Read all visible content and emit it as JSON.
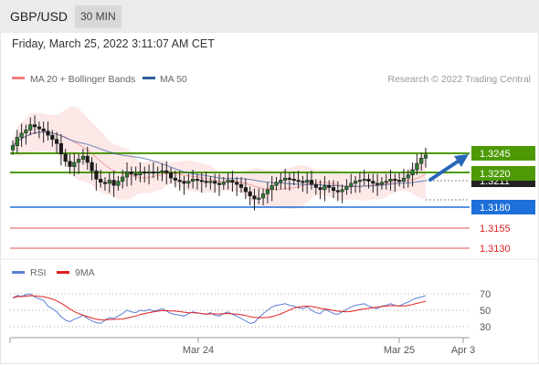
{
  "header": {
    "symbol": "GBP/USD",
    "timeframe": "30 MIN"
  },
  "datetime": "Friday, March 25, 2022 3:11:07 AM CET",
  "legend": {
    "bb_label": "MA 20 + Bollinger Bands",
    "ma50_label": "MA 50",
    "credit": "Research © 2022 Trading Central"
  },
  "colors": {
    "bb": "#f08080",
    "ma50": "#2e5a9c",
    "resistance": "#4e9a06",
    "pivot": "#1e6fd9",
    "support": "#e05050",
    "rsi": "#5b7fd6",
    "rsi_ma": "#e02020"
  },
  "levels": {
    "r2": "1.3245",
    "r1": "1.3220",
    "current": "1.3211",
    "pivot": "1.3180",
    "s1": "1.3155",
    "s2": "1.3130"
  },
  "indicator": {
    "rsi_label": "RSI",
    "ma_label": "9MA",
    "ticks": [
      "70",
      "50",
      "30"
    ]
  },
  "xaxis": {
    "labels": [
      "Mar 24",
      "Mar 25",
      "Apr 3"
    ]
  },
  "chart_data": {
    "type": "candlestick",
    "y_range": [
      1.3122,
      1.3272
    ],
    "closes": [
      1.322,
      1.3228,
      1.3232,
      1.3235,
      1.324,
      1.3238,
      1.3236,
      1.3234,
      1.323,
      1.3226,
      1.3222,
      1.3212,
      1.3205,
      1.32,
      1.3204,
      1.3207,
      1.321,
      1.3204,
      1.3196,
      1.3188,
      1.3185,
      1.3184,
      1.3187,
      1.3182,
      1.3186,
      1.319,
      1.3195,
      1.3193,
      1.3192,
      1.3195,
      1.3194,
      1.3195,
      1.3194,
      1.3195,
      1.3196,
      1.3194,
      1.3189,
      1.3187,
      1.3186,
      1.3184,
      1.3186,
      1.3188,
      1.3187,
      1.3186,
      1.3185,
      1.3186,
      1.3184,
      1.3183,
      1.3185,
      1.3187,
      1.3185,
      1.3183,
      1.318,
      1.3176,
      1.3172,
      1.3169,
      1.317,
      1.3174,
      1.3178,
      1.3182,
      1.3185,
      1.3187,
      1.3189,
      1.3188,
      1.3187,
      1.3186,
      1.3185,
      1.3187,
      1.3183,
      1.318,
      1.3178,
      1.3182,
      1.318,
      1.3177,
      1.3176,
      1.3178,
      1.3181,
      1.3184,
      1.3186,
      1.3187,
      1.3188,
      1.3186,
      1.3184,
      1.3183,
      1.3185,
      1.3186,
      1.3188,
      1.3187,
      1.3186,
      1.3189,
      1.3192,
      1.3197,
      1.3203,
      1.3208,
      1.3211
    ],
    "rsi": [
      65,
      68,
      67,
      69,
      70,
      66,
      64,
      62,
      55,
      52,
      48,
      42,
      38,
      36,
      39,
      41,
      44,
      40,
      37,
      35,
      34,
      38,
      41,
      40,
      43,
      46,
      50,
      48,
      47,
      50,
      49,
      51,
      49,
      50,
      52,
      49,
      46,
      45,
      44,
      43,
      46,
      48,
      47,
      46,
      45,
      47,
      44,
      43,
      46,
      48,
      45,
      43,
      40,
      37,
      34,
      35,
      41,
      46,
      50,
      54,
      56,
      57,
      58,
      56,
      55,
      53,
      52,
      54,
      50,
      47,
      46,
      51,
      49,
      46,
      45,
      48,
      51,
      54,
      56,
      57,
      58,
      55,
      53,
      52,
      55,
      56,
      58,
      56,
      55,
      58,
      60,
      63,
      65,
      66,
      68
    ]
  }
}
